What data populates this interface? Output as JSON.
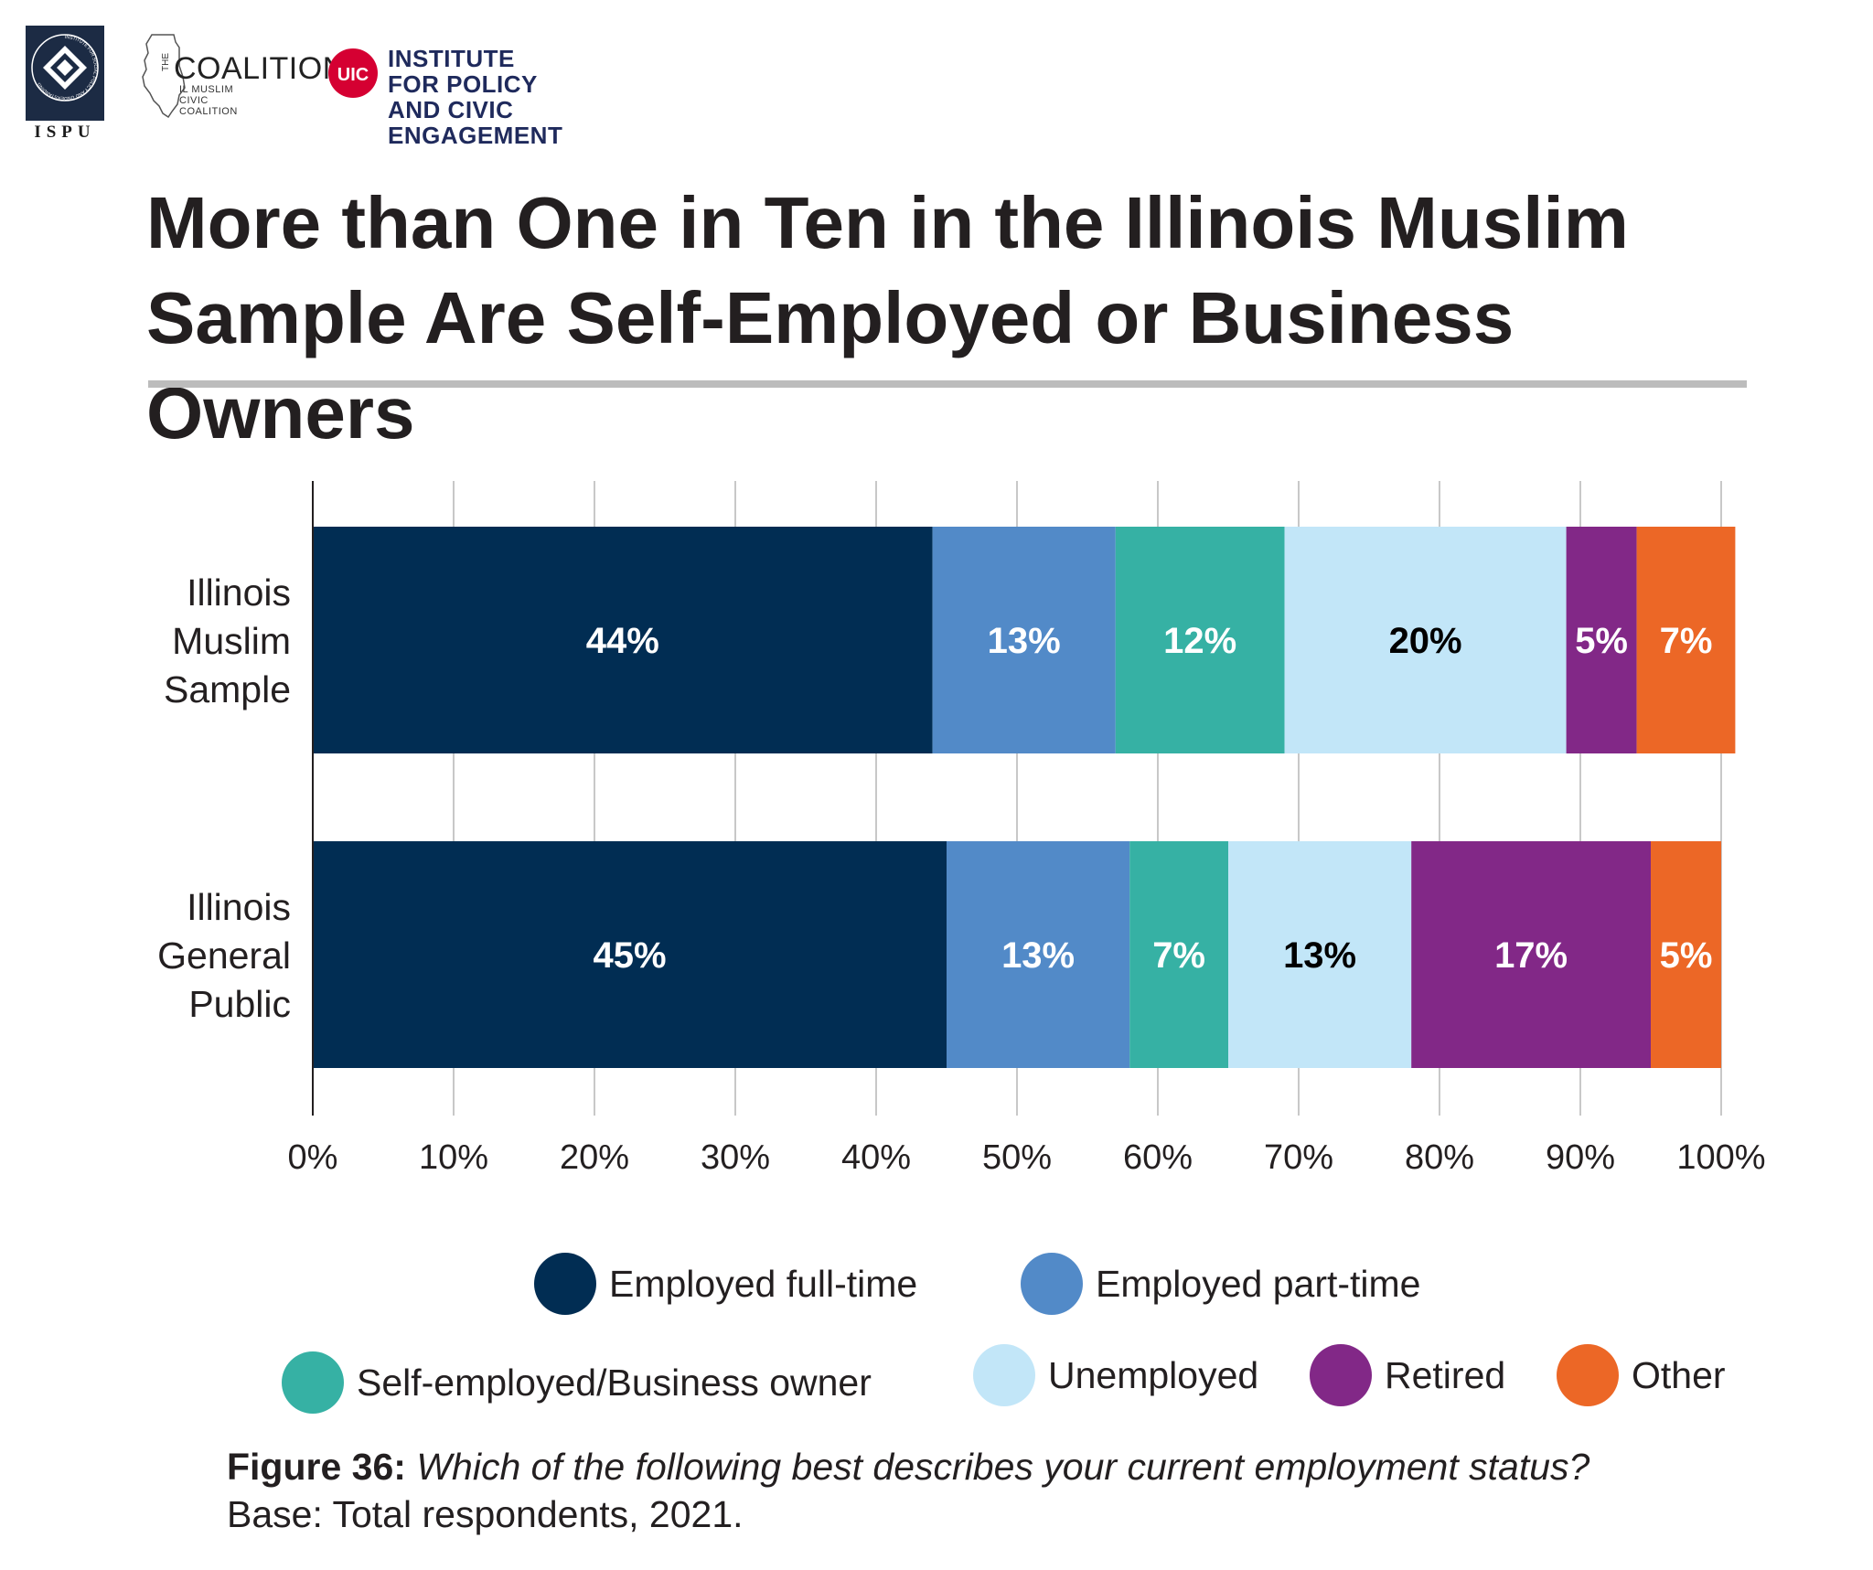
{
  "logos": {
    "ispu_text": "ISPU",
    "ispu_ring_text": "INSTITUTE FOR SOCIAL POLICY AND UNDERSTANDING",
    "coalition_name": "COALITION",
    "coalition_the": "THE",
    "coalition_sub": "IL MUSLIM CIVIC COALITION",
    "uic_badge": "UIC",
    "ipce_line1": "INSTITUTE FOR POLICY",
    "ipce_line2": "AND CIVIC ENGAGEMENT"
  },
  "header": {
    "title_line1": "More than One in Ten in the Illinois Muslim",
    "title_line2": "Sample Are Self-Employed or Business Owners"
  },
  "chart_data": {
    "type": "bar",
    "orientation": "horizontal",
    "stacked": true,
    "title": "More than One in Ten in the Illinois Muslim Sample Are Self-Employed or Business Owners",
    "categories": [
      [
        "Illinois",
        "Muslim",
        "Sample"
      ],
      [
        "Illinois",
        "General",
        "Public"
      ]
    ],
    "series": [
      {
        "name": "Employed full-time",
        "color": "#012d53",
        "values": [
          44,
          45
        ],
        "labels": [
          "44%",
          "45%"
        ],
        "label_color": "#ffffff"
      },
      {
        "name": "Employed part-time",
        "color": "#528ac8",
        "values": [
          13,
          13
        ],
        "labels": [
          "13%",
          "13%"
        ],
        "label_color": "#ffffff"
      },
      {
        "name": "Self-employed/Business owner",
        "color": "#36b1a4",
        "values": [
          12,
          7
        ],
        "labels": [
          "12%",
          "7%"
        ],
        "label_color": "#ffffff"
      },
      {
        "name": "Unemployed",
        "color": "#c2e6f8",
        "values": [
          20,
          13
        ],
        "labels": [
          "20%",
          "13%"
        ],
        "label_color": "#000000"
      },
      {
        "name": "Retired",
        "color": "#822887",
        "values": [
          5,
          17
        ],
        "labels": [
          "5%",
          "17%"
        ],
        "label_color": "#ffffff"
      },
      {
        "name": "Other",
        "color": "#ec6726",
        "values": [
          7,
          5
        ],
        "labels": [
          "7%",
          "5%"
        ],
        "label_color": "#ffffff"
      }
    ],
    "x_ticks": [
      "0%",
      "10%",
      "20%",
      "30%",
      "40%",
      "50%",
      "60%",
      "70%",
      "80%",
      "90%",
      "100%"
    ],
    "xlim": [
      0,
      100
    ],
    "grid": true,
    "legend_position": "bottom"
  },
  "caption": {
    "figure_label": "Figure 36:",
    "question": "Which of the following best describes your current employment status?",
    "base": "Base: Total respondents, 2021."
  }
}
